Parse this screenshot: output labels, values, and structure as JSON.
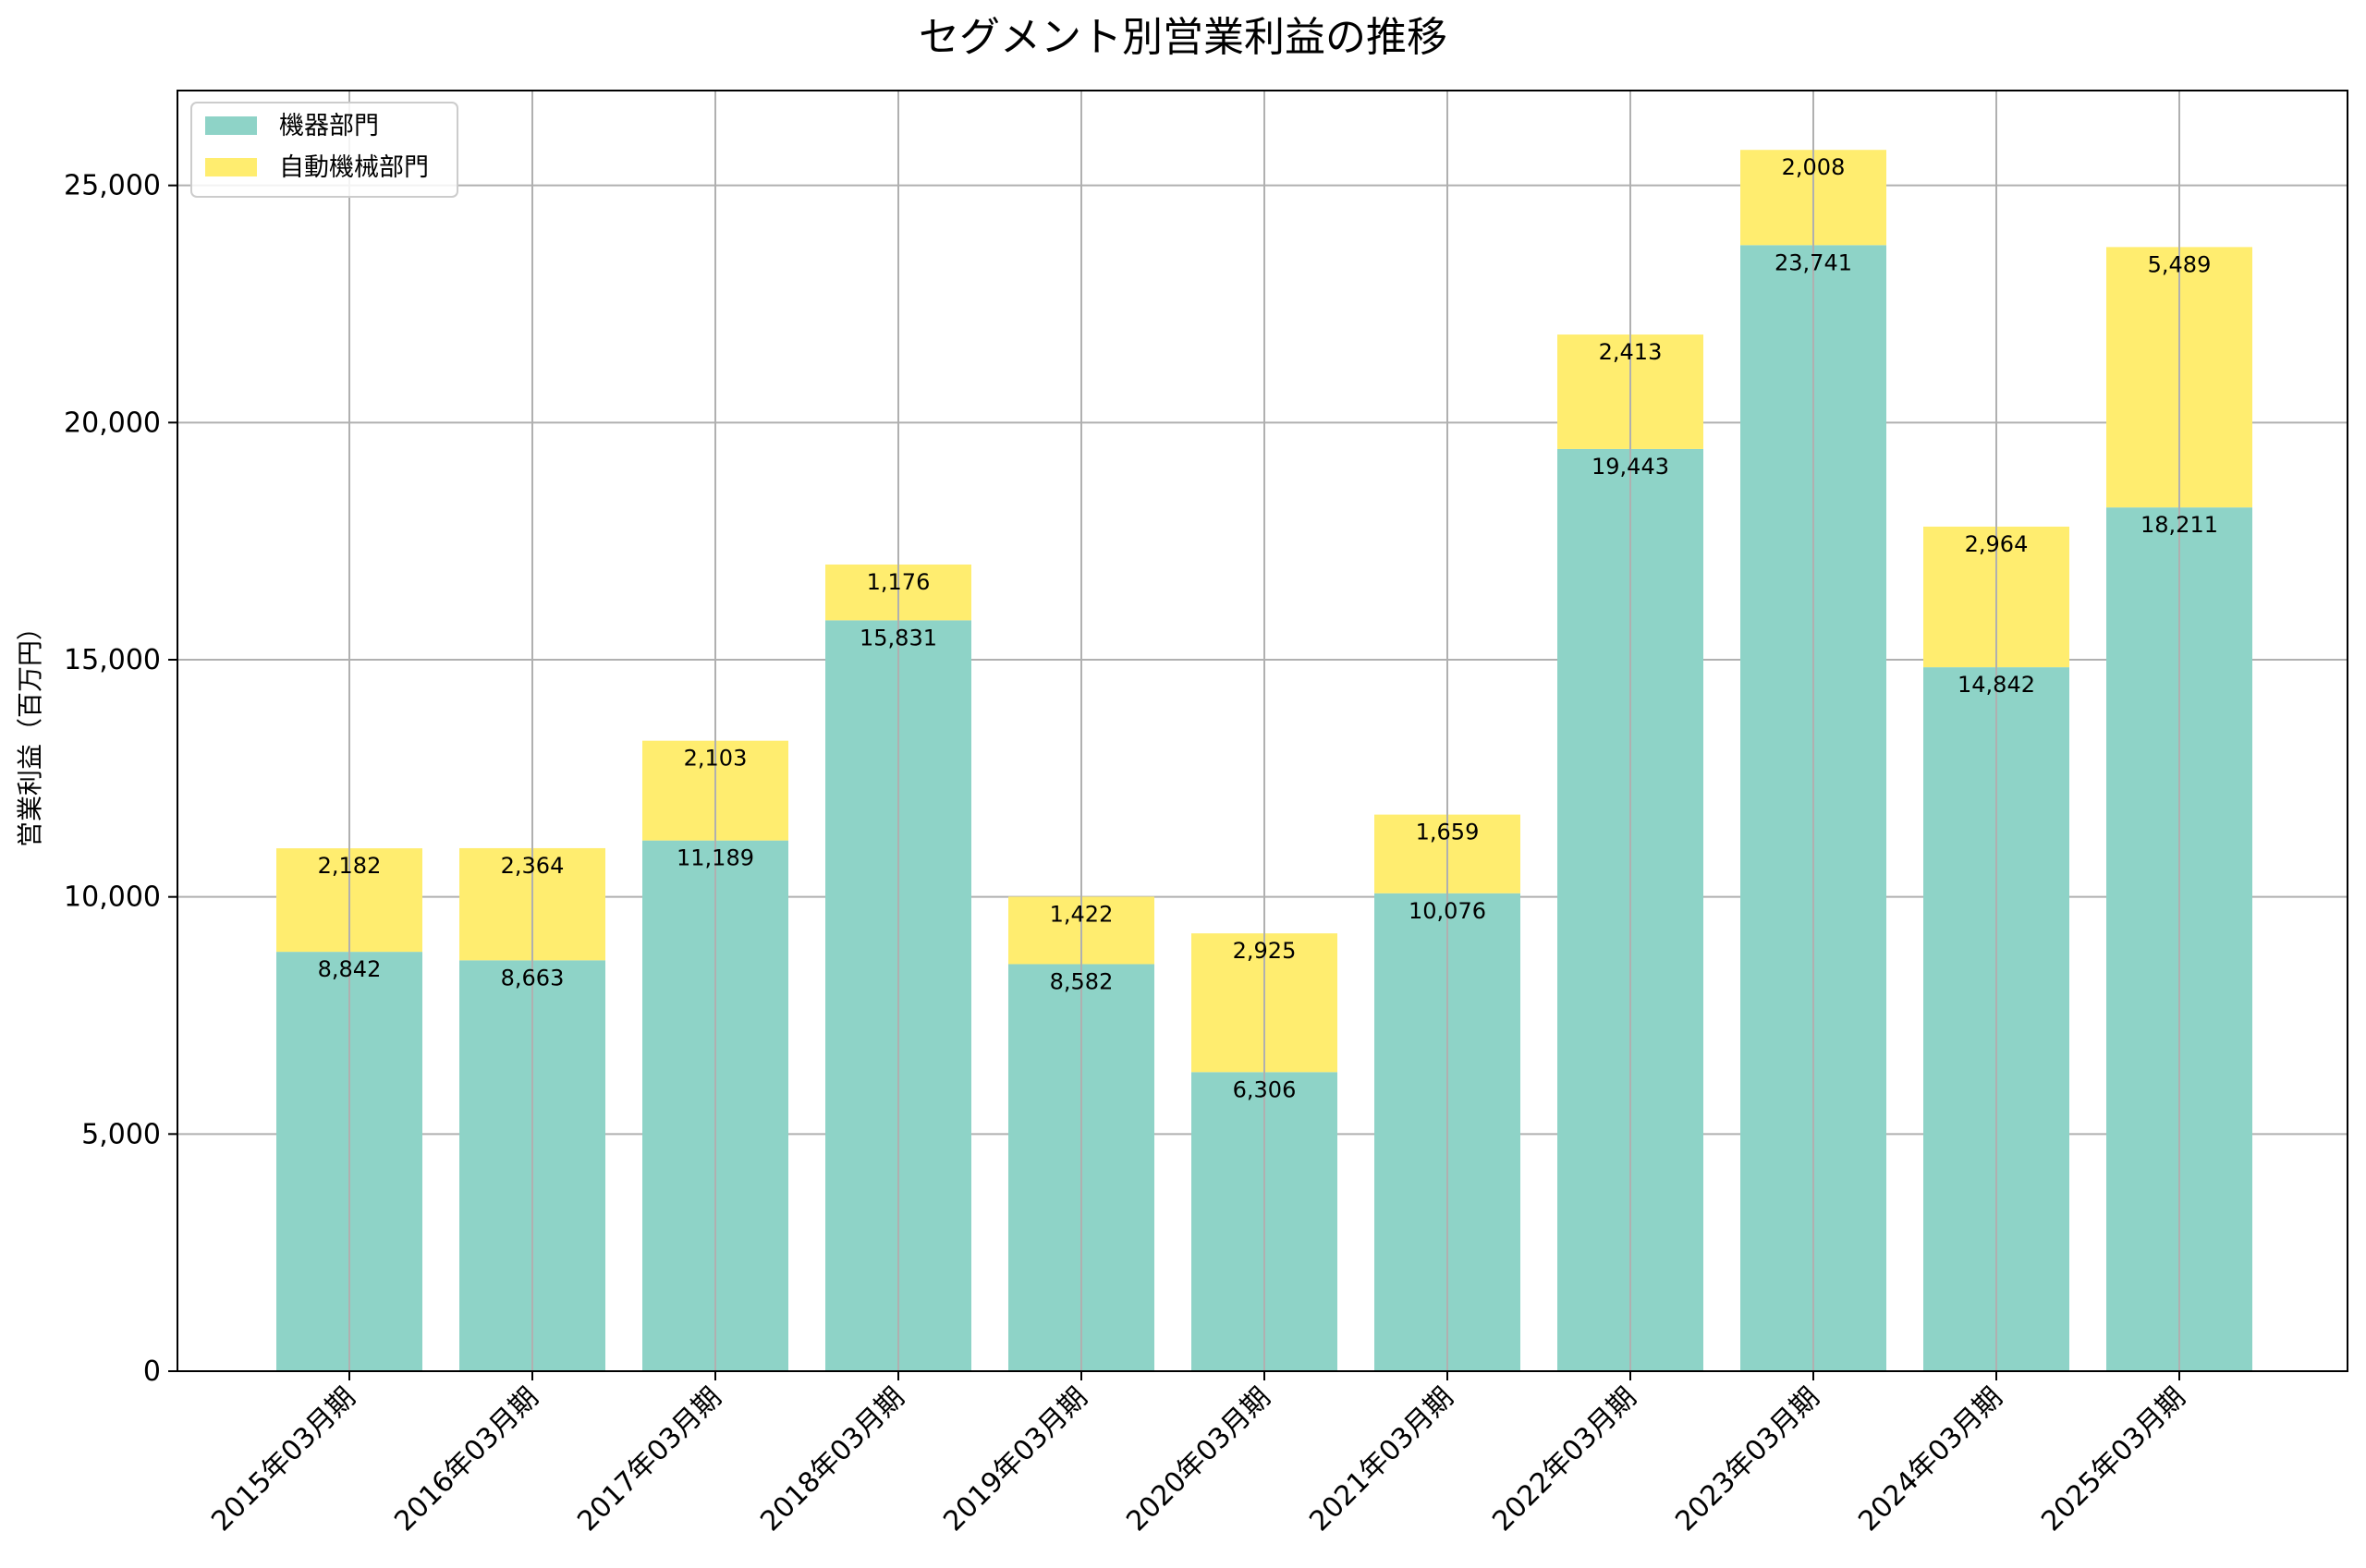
{
  "chart_data": {
    "type": "bar",
    "stacked": true,
    "title": "セグメント別営業利益の推移",
    "xlabel": "",
    "ylabel": "営業利益（百万円）",
    "categories": [
      "2015年03月期",
      "2016年03月期",
      "2017年03月期",
      "2018年03月期",
      "2019年03月期",
      "2020年03月期",
      "2021年03月期",
      "2022年03月期",
      "2023年03月期",
      "2024年03月期",
      "2025年03月期"
    ],
    "series": [
      {
        "name": "機器部門",
        "color": "#8ed3c7",
        "values": [
          8842,
          8663,
          11189,
          15831,
          8582,
          6306,
          10076,
          19443,
          23741,
          14842,
          18211
        ]
      },
      {
        "name": "自動機械部門",
        "color": "#ffed6f",
        "values": [
          2182,
          2364,
          2103,
          1176,
          1422,
          2925,
          1659,
          2413,
          2008,
          2964,
          5489
        ]
      }
    ],
    "data_labels": [
      [
        "8,842",
        "8,663",
        "11,189",
        "15,831",
        "8,582",
        "6,306",
        "10,076",
        "19,443",
        "23,741",
        "14,842",
        "18,211"
      ],
      [
        "2,182",
        "2,364",
        "2,103",
        "1,176",
        "1,422",
        "2,925",
        "1,659",
        "2,413",
        "2,008",
        "2,964",
        "5,489"
      ]
    ],
    "yticks": [
      0,
      5000,
      10000,
      15000,
      20000,
      25000
    ],
    "ytick_labels": [
      "0",
      "5,000",
      "10,000",
      "15,000",
      "20,000",
      "25,000"
    ],
    "ylim": [
      0,
      27000
    ],
    "grid": true,
    "legend_position": "top-left"
  }
}
